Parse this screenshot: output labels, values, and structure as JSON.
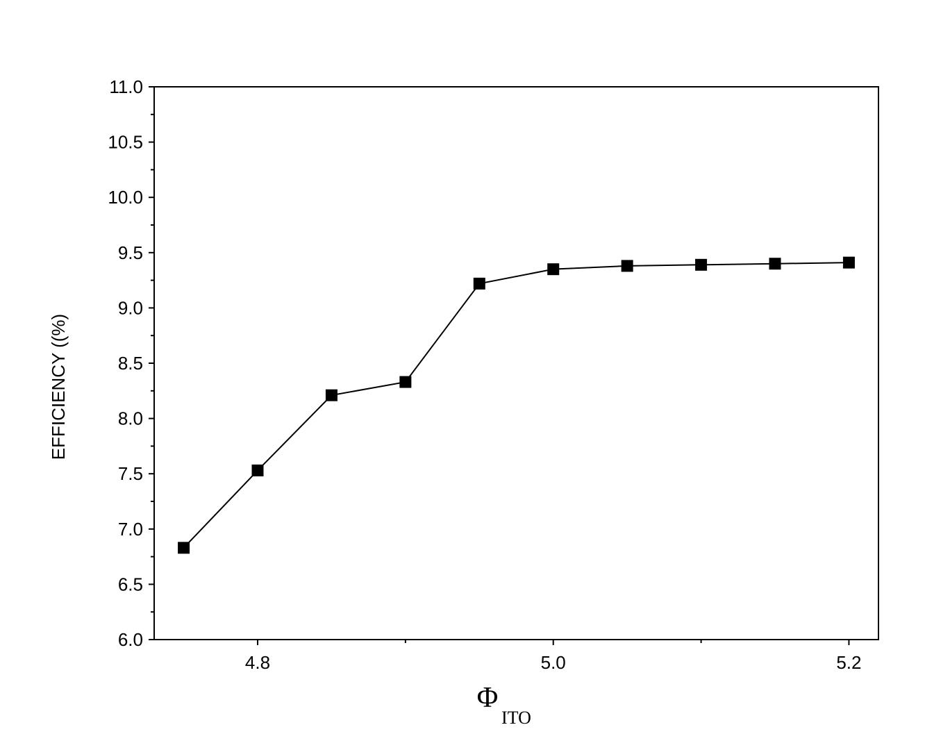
{
  "chart_data": {
    "type": "line",
    "ylabel": "EFFICIENCY ((%)",
    "xlabel": {
      "text": "Φ",
      "subscript": "ITO"
    },
    "x": [
      4.75,
      4.8,
      4.85,
      4.9,
      4.95,
      5.0,
      5.05,
      5.1,
      5.15,
      5.2
    ],
    "series": [
      {
        "color": "#000000",
        "marker": "square",
        "values": [
          6.83,
          7.53,
          8.21,
          8.33,
          9.22,
          9.35,
          9.38,
          9.39,
          9.4,
          9.41
        ]
      }
    ],
    "xlim": [
      4.73,
      5.22
    ],
    "ylim": [
      6.0,
      11.0
    ],
    "xticks": [
      4.8,
      {
        "value": 5.0,
        "label": "5.0"
      },
      5.2
    ],
    "yticks": [
      {
        "value": 6.0,
        "label": "6.0"
      },
      6.5,
      {
        "value": 7.0,
        "label": "7.0"
      },
      7.5,
      {
        "value": 8.0,
        "label": "8.0"
      },
      8.5,
      {
        "value": 9.0,
        "label": "9.0"
      },
      9.5,
      {
        "value": 10.0,
        "label": "10.0"
      },
      10.5,
      {
        "value": 11.0,
        "label": "11.0"
      }
    ],
    "grid": false
  }
}
